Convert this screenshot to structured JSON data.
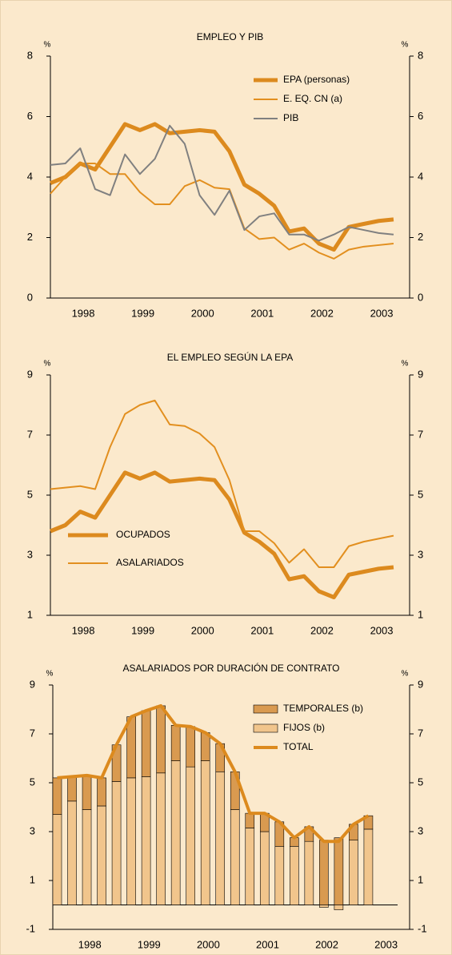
{
  "chart_data": [
    {
      "type": "line",
      "title": "EMPLEO Y PIB",
      "ylabel": "%",
      "categories": [
        null,
        null,
        "1998",
        null,
        null,
        null,
        "1999",
        null,
        null,
        null,
        "2000",
        null,
        null,
        null,
        "2001",
        null,
        null,
        null,
        "2002",
        null,
        null,
        null,
        "2003",
        null
      ],
      "ylim": [
        0,
        8
      ],
      "yticks": [
        0,
        2,
        4,
        6,
        8
      ],
      "legend": "upper right",
      "series": [
        {
          "name": "EPA (personas)",
          "color": "#dc8a1e",
          "width": 5,
          "values": [
            3.8,
            4.0,
            4.45,
            4.25,
            5.0,
            5.75,
            5.55,
            5.75,
            5.45,
            5.5,
            5.55,
            5.5,
            4.85,
            3.75,
            3.45,
            3.05,
            2.2,
            2.3,
            1.8,
            1.6,
            2.35,
            2.45,
            2.55,
            2.6
          ]
        },
        {
          "name": "E. EQ. CN (a)",
          "color": "#e28f1f",
          "width": 2,
          "values": [
            3.45,
            4.0,
            4.45,
            4.45,
            4.1,
            4.1,
            3.5,
            3.1,
            3.1,
            3.7,
            3.9,
            3.65,
            3.6,
            2.3,
            1.95,
            2.0,
            1.6,
            1.8,
            1.5,
            1.3,
            1.6,
            1.7,
            1.75,
            1.8
          ]
        },
        {
          "name": "PIB",
          "color": "#808080",
          "width": 2,
          "values": [
            4.4,
            4.45,
            4.95,
            3.6,
            3.4,
            4.75,
            4.1,
            4.6,
            5.7,
            5.1,
            3.4,
            2.75,
            3.55,
            2.25,
            2.7,
            2.8,
            2.1,
            2.1,
            1.9,
            2.1,
            2.35,
            2.25,
            2.15,
            2.1
          ]
        }
      ]
    },
    {
      "type": "line",
      "title": "EL EMPLEO SEGÚN LA EPA",
      "ylabel": "%",
      "categories": [
        null,
        null,
        "1998",
        null,
        null,
        null,
        "1999",
        null,
        null,
        null,
        "2000",
        null,
        null,
        null,
        "2001",
        null,
        null,
        null,
        "2002",
        null,
        null,
        null,
        "2003",
        null
      ],
      "ylim": [
        1,
        9
      ],
      "yticks": [
        1,
        3,
        5,
        7,
        9
      ],
      "legend": "lower left",
      "series": [
        {
          "name": "OCUPADOS",
          "color": "#dc8a1e",
          "width": 5,
          "values": [
            3.8,
            4.0,
            4.45,
            4.25,
            5.0,
            5.75,
            5.55,
            5.75,
            5.45,
            5.5,
            5.55,
            5.5,
            4.85,
            3.75,
            3.45,
            3.05,
            2.2,
            2.3,
            1.8,
            1.6,
            2.35,
            2.45,
            2.55,
            2.6
          ]
        },
        {
          "name": "ASALARIADOS",
          "color": "#e28f1f",
          "width": 2,
          "values": [
            5.2,
            5.25,
            5.3,
            5.2,
            6.6,
            7.7,
            8.0,
            8.15,
            7.35,
            7.3,
            7.05,
            6.6,
            5.5,
            3.8,
            3.8,
            3.4,
            2.75,
            3.2,
            2.6,
            2.6,
            3.3,
            3.45,
            3.55,
            3.65
          ]
        }
      ]
    },
    {
      "type": "bar",
      "title": "ASALARIADOS POR DURACIÓN DE CONTRATO",
      "ylabel": "%",
      "categories": [
        null,
        "1998",
        null,
        null,
        null,
        "1999",
        null,
        null,
        null,
        "2000",
        null,
        null,
        null,
        "2001",
        null,
        null,
        null,
        "2002",
        null,
        null,
        null,
        "2003"
      ],
      "ylim": [
        -1,
        9
      ],
      "yticks": [
        -1,
        1,
        3,
        5,
        7,
        9
      ],
      "legend": "upper right",
      "stacked": true,
      "series": [
        {
          "name": "FIJOS (b)",
          "type": "bar",
          "color": "#f1c58c",
          "values": [
            3.7,
            4.25,
            3.9,
            4.05,
            5.05,
            5.2,
            5.25,
            5.4,
            5.9,
            5.65,
            5.9,
            5.45,
            3.9,
            3.15,
            3.0,
            2.4,
            2.4,
            2.6,
            -0.1,
            -0.2,
            2.65,
            3.1
          ]
        },
        {
          "name": "TEMPORALES (b)",
          "type": "bar",
          "color": "#d99a50",
          "values": [
            1.5,
            1.0,
            1.4,
            1.15,
            1.5,
            2.5,
            2.7,
            2.75,
            1.45,
            1.65,
            1.15,
            1.15,
            1.55,
            0.6,
            0.75,
            1.0,
            0.35,
            0.6,
            2.65,
            2.75,
            0.65,
            0.55
          ]
        },
        {
          "name": "TOTAL",
          "type": "line",
          "color": "#dc8a1e",
          "width": 4,
          "values": [
            5.2,
            5.25,
            5.3,
            5.2,
            6.55,
            7.7,
            7.95,
            8.15,
            7.35,
            7.3,
            7.05,
            6.6,
            5.45,
            3.75,
            3.75,
            3.4,
            2.75,
            3.2,
            2.6,
            2.6,
            3.3,
            3.65
          ]
        }
      ]
    }
  ]
}
